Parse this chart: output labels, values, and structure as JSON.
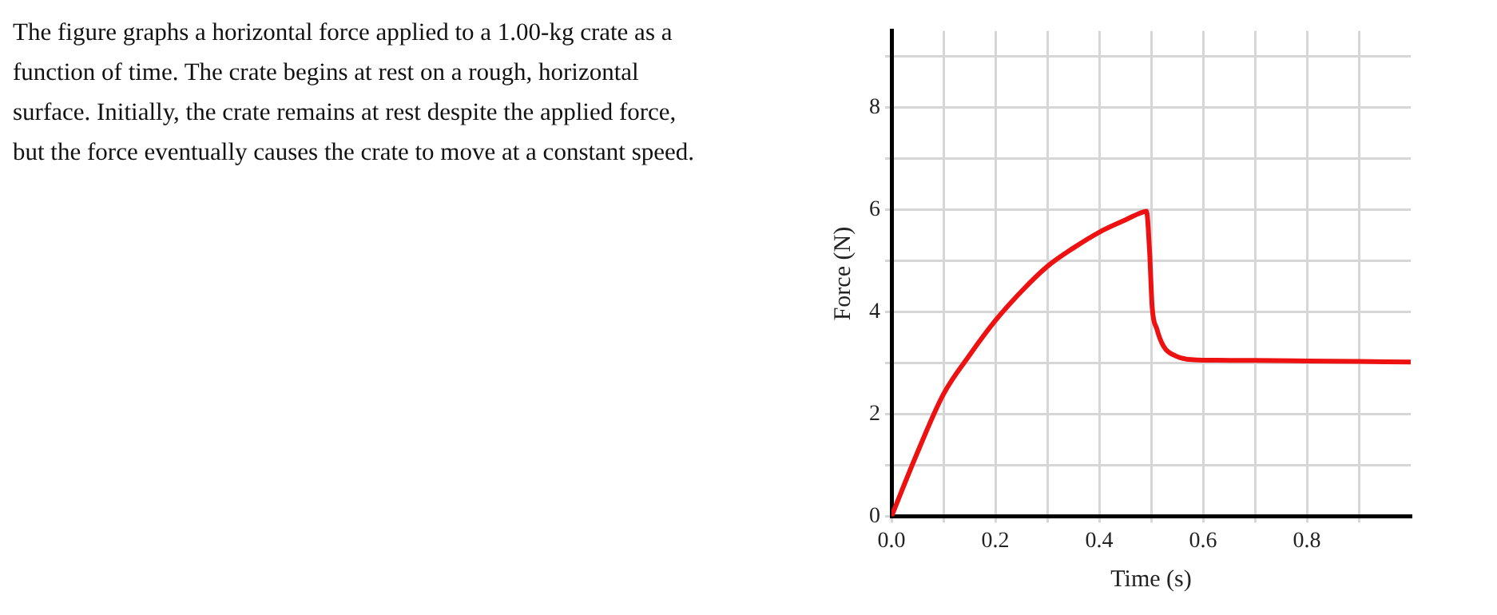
{
  "chart_data": {
    "type": "line",
    "xlabel": "Time (s)",
    "ylabel": "Force (N)",
    "annotations": [
      "The figure graphs a horizontal force applied to a 1.00-kg crate as a function of time. The crate begins at rest on a rough, horizontal surface. Initially, the crate remains at rest despite the applied force, but the force eventually causes the crate to move at a constant speed."
    ],
    "series": [
      {
        "color": "#ee1111",
        "x": [
          0,
          0.05,
          0.1,
          0.15,
          0.2,
          0.25,
          0.3,
          0.35,
          0.4,
          0.45,
          0.48,
          0.491,
          0.497,
          0.502,
          0.511,
          0.524,
          0.547,
          0.591,
          0.7,
          0.8,
          0.9,
          1.0
        ],
        "values": [
          0,
          1.25,
          2.39,
          3.15,
          3.83,
          4.4,
          4.89,
          5.25,
          5.56,
          5.8,
          5.94,
          5.97,
          5.2,
          4.1,
          3.67,
          3.33,
          3.14,
          3.06,
          3.05,
          3.04,
          3.03,
          3.02
        ]
      }
    ],
    "xlim": [
      0,
      1.0
    ],
    "xticks": [
      {
        "value": 0,
        "label": "0.0"
      },
      {
        "value": 0.1,
        "label": null
      },
      {
        "value": 0.2,
        "label": "0.2"
      },
      {
        "value": 0.3,
        "label": null
      },
      {
        "value": 0.4,
        "label": "0.4"
      },
      {
        "value": 0.5,
        "label": null
      },
      {
        "value": 0.6,
        "label": "0.6"
      },
      {
        "value": 0.7,
        "label": null
      },
      {
        "value": 0.8,
        "label": "0.8"
      },
      {
        "value": 0.9,
        "label": null
      }
    ],
    "ylim": [
      0,
      9.5
    ],
    "yticks": [
      0,
      {
        "value": 1,
        "label": null
      },
      2,
      {
        "value": 3,
        "label": null
      },
      4,
      {
        "value": 5,
        "label": null
      },
      6,
      {
        "value": 7,
        "label": null
      },
      8,
      {
        "value": 9,
        "label": null
      }
    ],
    "grid": true,
    "marker": "none",
    "line_style": "solid"
  }
}
